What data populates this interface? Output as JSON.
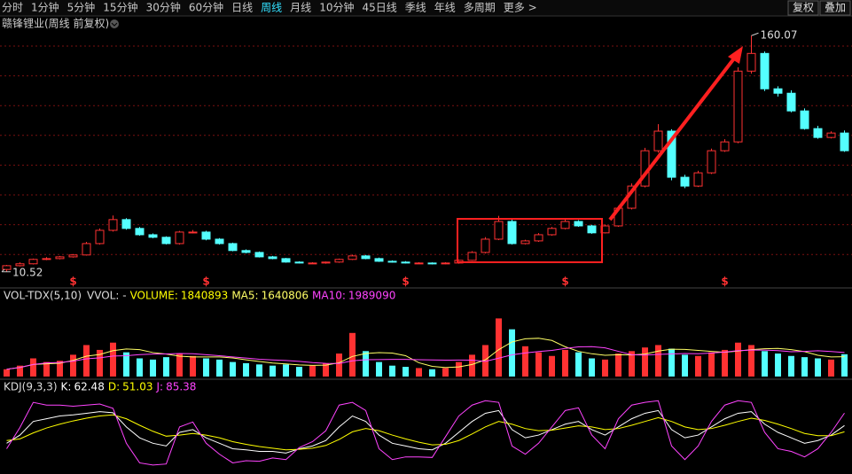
{
  "toolbar": {
    "items": [
      "分时",
      "1分钟",
      "5分钟",
      "15分钟",
      "30分钟",
      "60分钟",
      "日线",
      "周线",
      "月线",
      "10分钟",
      "45日线",
      "季线",
      "年线",
      "多周期",
      "更多 >"
    ],
    "active_index": 7,
    "buttons": [
      "复权",
      "叠加"
    ]
  },
  "chart_data": [
    {
      "type": "candlestick",
      "title": "赣锋锂业(周线 前复权)",
      "up_color": "#ff3232",
      "down_color": "#54ffff",
      "ylim": [
        2,
        163
      ],
      "open": [
        12.0,
        14.4,
        15.6,
        18.4,
        18.9,
        20,
        21.2,
        28.4,
        36.8,
        43.6,
        38,
        34,
        32.4,
        28.4,
        35.7,
        35.7,
        31.2,
        28.4,
        24,
        22.8,
        20,
        18.9,
        16.7,
        16.1,
        16.1,
        16.7,
        18.4,
        20.6,
        18.9,
        17.2,
        16.7,
        16.1,
        16.1,
        15.6,
        16.1,
        17.8,
        22.8,
        31.2,
        42.4,
        28.4,
        30.1,
        34,
        38,
        42.4,
        39.6,
        35.2,
        39.6,
        50.8,
        64.8,
        87.2,
        99.6,
        70.4,
        64.8,
        73.2,
        87.2,
        92.8,
        137.6,
        148.8,
        126.4,
        123.6,
        112.4,
        101.2,
        95.6,
        98.4
      ],
      "high": [
        14.9,
        16.5,
        18.9,
        19.8,
        20.6,
        21.8,
        29.5,
        38.0,
        46.2,
        44.5,
        38.9,
        34.8,
        33.0,
        36.4,
        37.0,
        36.5,
        31.9,
        29.0,
        24.7,
        23.4,
        20.6,
        19.3,
        17.2,
        16.6,
        17.0,
        18.9,
        21.4,
        21.2,
        19.5,
        17.8,
        17.3,
        16.6,
        16.5,
        16.6,
        18.3,
        23.6,
        32.5,
        46.0,
        43.5,
        30.8,
        35.0,
        38.9,
        43.6,
        43.2,
        40.3,
        40.5,
        52.3,
        66.5,
        89.0,
        104.0,
        100.8,
        72.0,
        74.5,
        88.5,
        94.5,
        140.0,
        160.07,
        150.0,
        128.0,
        125.5,
        114.0,
        103.0,
        99.5,
        100.0
      ],
      "low": [
        10.52,
        13.9,
        15.2,
        17.9,
        18.4,
        19.5,
        20.8,
        27.8,
        36.0,
        37.2,
        33.4,
        31.8,
        27.9,
        27.8,
        34.9,
        30.5,
        27.8,
        23.5,
        22.3,
        19.6,
        18.5,
        16.3,
        15.8,
        15.6,
        15.7,
        16.2,
        18.0,
        18.5,
        16.8,
        16.3,
        15.8,
        15.6,
        15.2,
        15.3,
        15.7,
        17.4,
        22.2,
        30.6,
        27.8,
        27.9,
        29.5,
        33.4,
        37.4,
        39.0,
        34.6,
        34.8,
        39.0,
        50.0,
        64.0,
        86.0,
        68.5,
        63.5,
        64.2,
        72.5,
        86.5,
        92.0,
        136.0,
        125.0,
        121.5,
        111.5,
        100.5,
        94.8,
        95.0,
        86.5
      ],
      "close": [
        14.4,
        15.6,
        18.4,
        18.9,
        20,
        21.2,
        28.4,
        36.8,
        43.6,
        38,
        34,
        32.4,
        28.4,
        35.7,
        35.7,
        31.2,
        28.4,
        24,
        22.8,
        20,
        18.9,
        16.7,
        16.1,
        16.1,
        16.7,
        18.4,
        20.6,
        18.9,
        17.2,
        16.7,
        16.1,
        16.1,
        15.6,
        16.1,
        17.8,
        22.8,
        31.2,
        42.4,
        28.4,
        30.1,
        34,
        38,
        42.4,
        39.6,
        35.2,
        39.6,
        50.8,
        64.8,
        87.2,
        99.6,
        70.4,
        64.8,
        73.2,
        87.2,
        92.8,
        137.6,
        148.8,
        126.4,
        123.6,
        112.4,
        101.2,
        95.6,
        98.4,
        87.2
      ],
      "markers": {
        "label": "$",
        "indices": [
          5,
          15,
          30,
          42,
          54
        ],
        "color": "#ff3232"
      }
    },
    {
      "type": "volume",
      "name": "VOL-TDX(5,10)",
      "vvol_label": "VVOL: -",
      "ylim": [
        0,
        6000000
      ],
      "series": [
        {
          "name": "VOLUME:",
          "color": "#ffff00",
          "values": [
            600000,
            900000,
            1500000,
            1200000,
            1300000,
            1800000,
            2600000,
            2200000,
            2800000,
            2000000,
            1500000,
            1400000,
            1600000,
            1900000,
            1700000,
            1500000,
            1400000,
            1200000,
            1100000,
            1000000,
            900000,
            1000000,
            800000,
            900000,
            1100000,
            1900000,
            3600000,
            2100000,
            1200000,
            900000,
            800000,
            700000,
            600000,
            700000,
            1200000,
            1800000,
            2600000,
            4800000,
            3900000,
            2500000,
            2000000,
            1700000,
            2200000,
            2000000,
            1500000,
            1400000,
            1900000,
            2100000,
            2400000,
            2600000,
            2300000,
            1800000,
            1700000,
            2000000,
            2200000,
            2800000,
            2600000,
            2100000,
            1900000,
            1700000,
            1600000,
            1500000,
            1400000,
            1840893
          ]
        },
        {
          "name": "MA5:",
          "color": "#ffff66",
          "values": [
            600000,
            750000,
            1000000,
            1050000,
            1100000,
            1340000,
            1680000,
            1820000,
            2140000,
            2280000,
            2220000,
            1980000,
            1860000,
            1680000,
            1620000,
            1620000,
            1620000,
            1540000,
            1380000,
            1240000,
            1120000,
            1040000,
            960000,
            920000,
            940000,
            1140000,
            1660000,
            1900000,
            1980000,
            1940000,
            1720000,
            1140000,
            840000,
            740000,
            800000,
            1000000,
            1380000,
            2220000,
            2860000,
            3120000,
            3160000,
            2980000,
            2460000,
            2080000,
            1880000,
            1760000,
            1800000,
            1780000,
            1860000,
            2100000,
            2260000,
            2240000,
            2160000,
            2080000,
            2000000,
            2100000,
            2220000,
            2300000,
            2320000,
            2220000,
            2060000,
            1760000,
            1620000,
            1640806
          ]
        },
        {
          "name": "MA10:",
          "color": "#ff44ff",
          "values": [
            600000,
            750000,
            1000000,
            1125000,
            1160000,
            1270000,
            1460000,
            1550000,
            1690000,
            1720000,
            1810000,
            1860000,
            1870000,
            1900000,
            1880000,
            1800000,
            1720000,
            1620000,
            1530000,
            1430000,
            1370000,
            1330000,
            1250000,
            1150000,
            1090000,
            1080000,
            1300000,
            1390000,
            1400000,
            1420000,
            1420000,
            1390000,
            1370000,
            1350000,
            1360000,
            1350000,
            1250000,
            1520000,
            1790000,
            1950000,
            2070000,
            2160000,
            2320000,
            2450000,
            2470000,
            2370000,
            2080000,
            1800000,
            1770000,
            1830000,
            1870000,
            1900000,
            1880000,
            1940000,
            2020000,
            2140000,
            2190000,
            2190000,
            2140000,
            2050000,
            2080000,
            2130000,
            2070000,
            1989090
          ]
        }
      ]
    },
    {
      "type": "line",
      "name": "KDJ(9,3,3)",
      "ylim": [
        -15,
        115
      ],
      "series": [
        {
          "name": "K:",
          "color": "#ffffff",
          "values": [
            30,
            45,
            70,
            75,
            80,
            82,
            85,
            88,
            86,
            60,
            40,
            30,
            25,
            50,
            55,
            40,
            30,
            20,
            18,
            15,
            15,
            12,
            20,
            25,
            35,
            60,
            80,
            70,
            45,
            30,
            25,
            20,
            18,
            30,
            50,
            70,
            85,
            90,
            55,
            40,
            45,
            55,
            65,
            70,
            55,
            45,
            60,
            75,
            85,
            90,
            55,
            40,
            45,
            60,
            75,
            85,
            88,
            65,
            50,
            40,
            30,
            35,
            45,
            62.48
          ]
        },
        {
          "name": "D:",
          "color": "#ffff00",
          "values": [
            35,
            38,
            49,
            58,
            65,
            71,
            76,
            80,
            82,
            75,
            63,
            52,
            43,
            45,
            48,
            45,
            40,
            33,
            28,
            24,
            21,
            18,
            19,
            21,
            26,
            37,
            51,
            57,
            53,
            45,
            38,
            32,
            27,
            28,
            35,
            47,
            60,
            70,
            65,
            57,
            53,
            54,
            58,
            62,
            60,
            55,
            57,
            63,
            70,
            77,
            70,
            60,
            55,
            57,
            63,
            70,
            76,
            72,
            65,
            57,
            48,
            44,
            44,
            51.03
          ]
        },
        {
          "name": "J:",
          "color": "#ff44ff",
          "values": [
            20,
            59,
            105,
            100,
            100,
            98,
            100,
            102,
            94,
            30,
            -6,
            -10,
            -8,
            60,
            69,
            30,
            10,
            -6,
            -2,
            -3,
            3,
            0,
            22,
            33,
            53,
            100,
            105,
            90,
            20,
            0,
            5,
            5,
            4,
            42,
            80,
            100,
            108,
            105,
            25,
            10,
            30,
            60,
            90,
            95,
            45,
            20,
            75,
            100,
            105,
            108,
            25,
            0,
            25,
            70,
            100,
            108,
            105,
            50,
            20,
            15,
            5,
            20,
            50,
            85.38
          ]
        }
      ]
    }
  ]
}
